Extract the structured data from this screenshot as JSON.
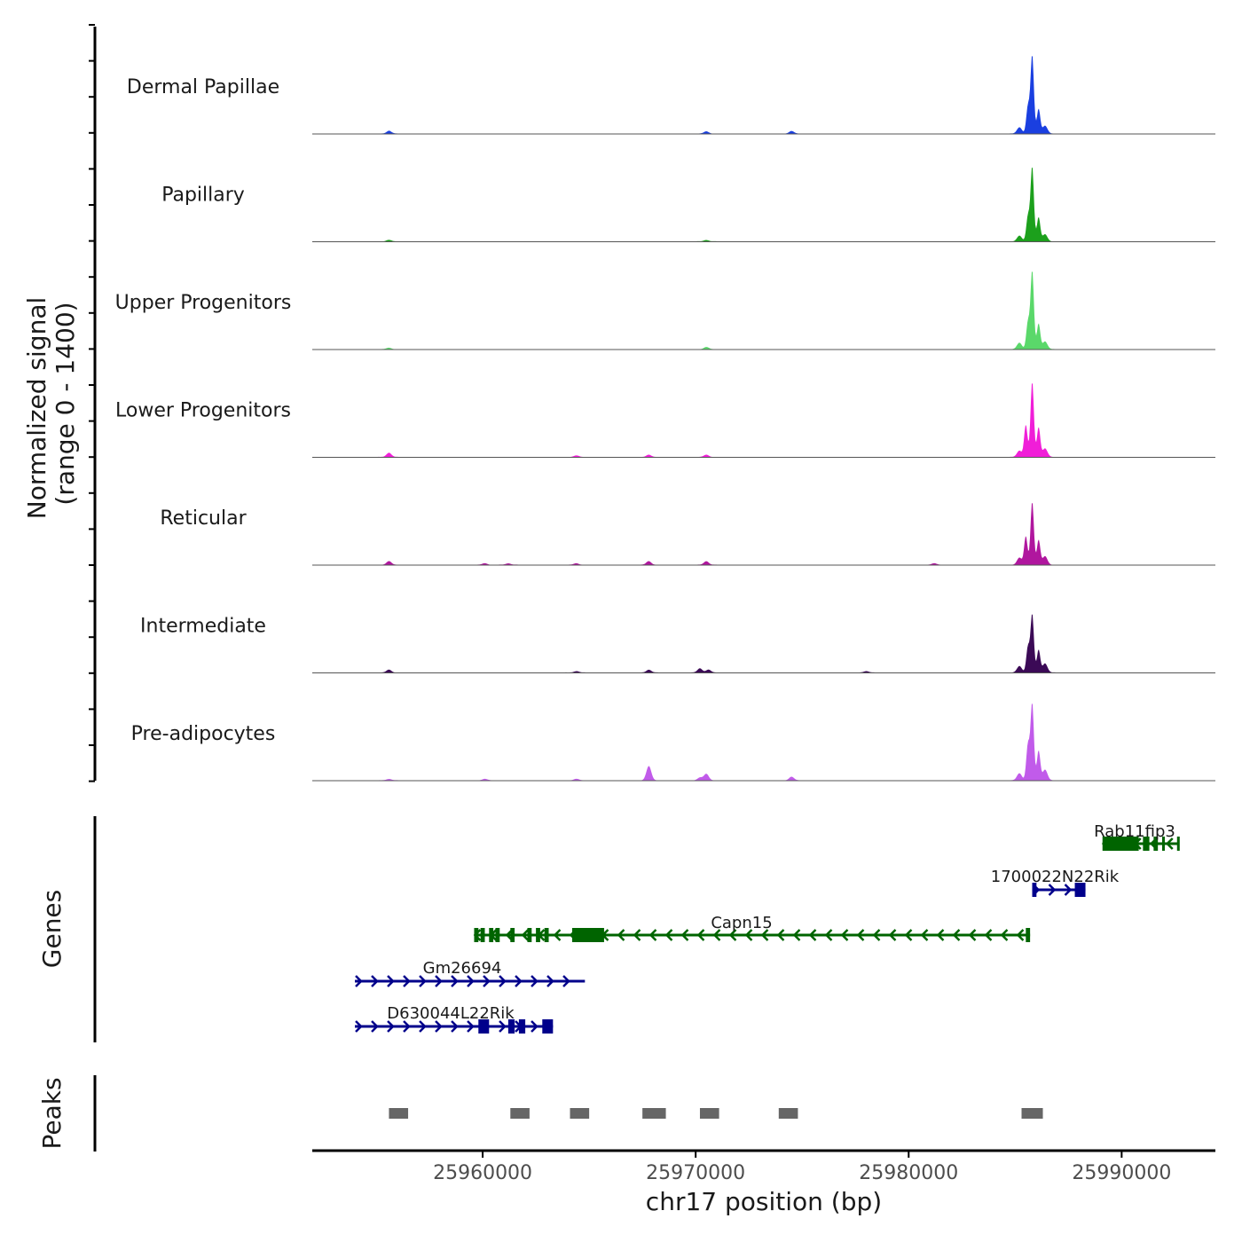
{
  "chart_data": {
    "type": "area",
    "title": "",
    "xlabel": "chr17 position (bp)",
    "xlim": [
      25952000,
      25994400
    ],
    "x_ticks": [
      "25960000",
      "25970000",
      "25980000",
      "25990000"
    ],
    "x_tick_values": [
      25960000,
      25970000,
      25980000,
      25990000
    ],
    "coverage": {
      "ylabel_line1": "Normalized signal",
      "ylabel_line2": "(range 0 - 1400)",
      "ylim": [
        0,
        1400
      ],
      "tracks": [
        {
          "name": "Dermal Papillae",
          "color": "#1a3fe0",
          "peaks": [
            [
              25955600,
              40
            ],
            [
              25970500,
              30
            ],
            [
              25974500,
              35
            ],
            [
              25985200,
              90
            ],
            [
              25985600,
              380
            ],
            [
              25985800,
              1100
            ],
            [
              25986100,
              350
            ],
            [
              25986400,
              110
            ]
          ]
        },
        {
          "name": "Papillary",
          "color": "#1ca01c",
          "peaks": [
            [
              25955600,
              20
            ],
            [
              25970500,
              20
            ],
            [
              25985200,
              80
            ],
            [
              25985600,
              350
            ],
            [
              25985800,
              1050
            ],
            [
              25986100,
              340
            ],
            [
              25986400,
              100
            ]
          ]
        },
        {
          "name": "Upper Progenitors",
          "color": "#5ad86a",
          "peaks": [
            [
              25955600,
              20
            ],
            [
              25970500,
              30
            ],
            [
              25985200,
              90
            ],
            [
              25985600,
              380
            ],
            [
              25985800,
              1100
            ],
            [
              25986100,
              360
            ],
            [
              25986400,
              110
            ]
          ]
        },
        {
          "name": "Lower Progenitors",
          "color": "#f01ed8",
          "peaks": [
            [
              25955600,
              60
            ],
            [
              25964400,
              20
            ],
            [
              25967800,
              30
            ],
            [
              25970500,
              30
            ],
            [
              25985200,
              90
            ],
            [
              25985500,
              450
            ],
            [
              25985800,
              1060
            ],
            [
              25986100,
              420
            ],
            [
              25986400,
              120
            ]
          ]
        },
        {
          "name": "Reticular",
          "color": "#b0169e",
          "peaks": [
            [
              25955600,
              50
            ],
            [
              25960100,
              20
            ],
            [
              25961200,
              20
            ],
            [
              25964400,
              20
            ],
            [
              25967800,
              50
            ],
            [
              25970500,
              50
            ],
            [
              25981200,
              20
            ],
            [
              25985200,
              100
            ],
            [
              25985500,
              400
            ],
            [
              25985800,
              890
            ],
            [
              25986100,
              350
            ],
            [
              25986400,
              120
            ]
          ]
        },
        {
          "name": "Intermediate",
          "color": "#3b0a56",
          "peaks": [
            [
              25955600,
              40
            ],
            [
              25964400,
              20
            ],
            [
              25967800,
              40
            ],
            [
              25970200,
              60
            ],
            [
              25970600,
              40
            ],
            [
              25978000,
              20
            ],
            [
              25985200,
              90
            ],
            [
              25985600,
              360
            ],
            [
              25985800,
              820
            ],
            [
              25986100,
              320
            ],
            [
              25986400,
              130
            ]
          ]
        },
        {
          "name": "Pre-adipocytes",
          "color": "#c15bea",
          "peaks": [
            [
              25955600,
              20
            ],
            [
              25960100,
              20
            ],
            [
              25964400,
              20
            ],
            [
              25967800,
              200
            ],
            [
              25970500,
              90
            ],
            [
              25970200,
              40
            ],
            [
              25974500,
              50
            ],
            [
              25985200,
              100
            ],
            [
              25985600,
              500
            ],
            [
              25985800,
              1080
            ],
            [
              25986100,
              420
            ],
            [
              25986400,
              150
            ]
          ]
        }
      ]
    },
    "genes": {
      "ylabel": "Genes",
      "items": [
        {
          "name": "Rab11fip3",
          "strand": "-",
          "color": "#006400",
          "start": 25989100,
          "end": 25992700,
          "exons": [
            [
              25989100,
              25990800
            ],
            [
              25991000,
              25991300
            ],
            [
              25991500,
              25991700
            ],
            [
              25991900,
              25992000
            ],
            [
              25992600,
              25992700
            ]
          ]
        },
        {
          "name": "1700022N22Rik",
          "strand": "+",
          "color": "#00008b",
          "start": 25985800,
          "end": 25988300,
          "exons": [
            [
              25985800,
              25986000
            ],
            [
              25987800,
              25988300
            ]
          ]
        },
        {
          "name": "Capn15",
          "strand": "-",
          "color": "#006400",
          "start": 25959600,
          "end": 25985700,
          "exons": [
            [
              25959600,
              25959800
            ],
            [
              25959900,
              25960100
            ],
            [
              25960300,
              25960500
            ],
            [
              25960600,
              25960800
            ],
            [
              25961300,
              25961500
            ],
            [
              25962100,
              25962300
            ],
            [
              25962500,
              25962700
            ],
            [
              25962900,
              25963100
            ],
            [
              25964200,
              25965700
            ],
            [
              25985500,
              25985700
            ]
          ]
        },
        {
          "name": "Gm26694",
          "strand": "+",
          "color": "#00008b",
          "start": 25954000,
          "end": 25964800,
          "exons": []
        },
        {
          "name": "D630044L22Rik",
          "strand": "+",
          "color": "#00008b",
          "start": 25954000,
          "end": 25963300,
          "exons": [
            [
              25959800,
              25960300
            ],
            [
              25961200,
              25961500
            ],
            [
              25961700,
              25962000
            ],
            [
              25962800,
              25963300
            ]
          ]
        }
      ]
    },
    "peaks": {
      "ylabel": "Peaks",
      "color": "#666666",
      "regions": [
        [
          25955600,
          25956500
        ],
        [
          25961300,
          25962200
        ],
        [
          25964100,
          25965000
        ],
        [
          25967500,
          25968600
        ],
        [
          25970200,
          25971100
        ],
        [
          25973900,
          25974800
        ],
        [
          25985300,
          25986300
        ]
      ]
    }
  }
}
